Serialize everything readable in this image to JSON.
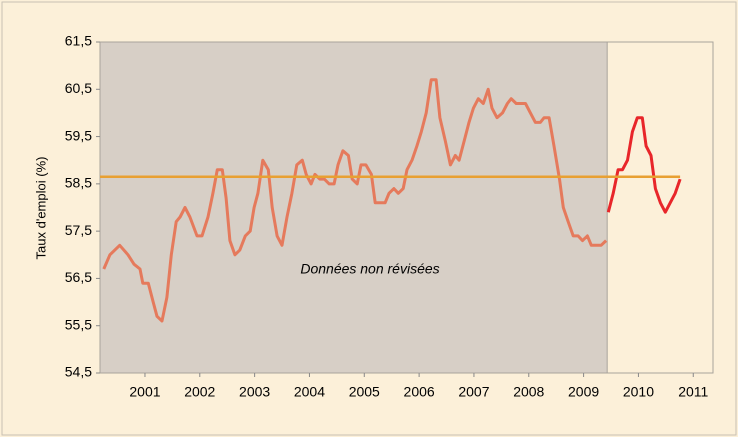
{
  "chart_data": {
    "type": "line",
    "y_label": "Taux d'emploi (%)",
    "annotation": "Données non révisées",
    "ylim": [
      54.5,
      61.5
    ],
    "yticks": [
      {
        "value": 54.5,
        "label": "54,5"
      },
      {
        "value": 55.5,
        "label": "55,5"
      },
      {
        "value": 56.5,
        "label": "56,5"
      },
      {
        "value": 57.5,
        "label": "57,5"
      },
      {
        "value": 58.5,
        "label": "58,5"
      },
      {
        "value": 59.5,
        "label": "59,5"
      },
      {
        "value": 60.5,
        "label": "60,5"
      },
      {
        "value": 61.5,
        "label": "61,5"
      }
    ],
    "xlim": [
      2000.18,
      2011.36
    ],
    "xticks": [
      2001,
      2002,
      2003,
      2004,
      2005,
      2006,
      2007,
      2008,
      2009,
      2010,
      2011
    ],
    "shaded_until": 2009.43,
    "shade_color": "#d7cfc6",
    "reference_line": {
      "value": 58.65,
      "x_end": 2010.76,
      "color": "#e8a032"
    },
    "series": [
      {
        "color": "#e57a5c",
        "x": [
          2000.25,
          2000.36,
          2000.54,
          2000.69,
          2000.8,
          2000.91,
          2000.96,
          2001.06,
          2001.15,
          2001.22,
          2001.31,
          2001.4,
          2001.48,
          2001.57,
          2001.64,
          2001.73,
          2001.82,
          2001.95,
          2002.04,
          2002.15,
          2002.24,
          2002.32,
          2002.41,
          2002.48,
          2002.55,
          2002.64,
          2002.73,
          2002.83,
          2002.92,
          2002.99,
          2003.06,
          2003.15,
          2003.25,
          2003.32,
          2003.41,
          2003.5,
          2003.59,
          2003.68,
          2003.77,
          2003.87,
          2003.94,
          2004.03,
          2004.1,
          2004.19,
          2004.27,
          2004.36,
          2004.45,
          2004.52,
          2004.61,
          2004.71,
          2004.78,
          2004.87,
          2004.94,
          2005.03,
          2005.13,
          2005.2,
          2005.29,
          2005.38,
          2005.45,
          2005.54,
          2005.62,
          2005.71,
          2005.78,
          2005.87,
          2005.96,
          2006.04,
          2006.13,
          2006.22,
          2006.31,
          2006.38,
          2006.48,
          2006.57,
          2006.66,
          2006.73,
          2006.82,
          2006.91,
          2006.99,
          2007.08,
          2007.17,
          2007.26,
          2007.33,
          2007.42,
          2007.52,
          2007.61,
          2007.68,
          2007.77,
          2007.86,
          2007.94,
          2008.03,
          2008.12,
          2008.21,
          2008.28,
          2008.37,
          2008.46,
          2008.56,
          2008.63,
          2008.72,
          2008.81,
          2008.9,
          2008.98,
          2009.07,
          2009.14,
          2009.23,
          2009.32,
          2009.41
        ],
        "values": [
          56.7,
          57.0,
          57.2,
          57.0,
          56.8,
          56.7,
          56.4,
          56.4,
          56.0,
          55.7,
          55.6,
          56.1,
          57.0,
          57.7,
          57.8,
          58.0,
          57.8,
          57.4,
          57.4,
          57.8,
          58.3,
          58.8,
          58.8,
          58.2,
          57.3,
          57.0,
          57.1,
          57.4,
          57.5,
          58.0,
          58.3,
          59.0,
          58.8,
          58.0,
          57.4,
          57.2,
          57.8,
          58.3,
          58.9,
          59.0,
          58.7,
          58.5,
          58.7,
          58.6,
          58.6,
          58.5,
          58.5,
          58.9,
          59.2,
          59.1,
          58.6,
          58.5,
          58.9,
          58.9,
          58.7,
          58.1,
          58.1,
          58.1,
          58.3,
          58.4,
          58.3,
          58.4,
          58.8,
          59.0,
          59.3,
          59.6,
          60.0,
          60.7,
          60.7,
          59.9,
          59.4,
          58.9,
          59.1,
          59.0,
          59.4,
          59.8,
          60.1,
          60.3,
          60.2,
          60.5,
          60.1,
          59.9,
          60.0,
          60.2,
          60.3,
          60.2,
          60.2,
          60.2,
          60.0,
          59.8,
          59.8,
          59.9,
          59.9,
          59.3,
          58.6,
          58.0,
          57.7,
          57.4,
          57.4,
          57.3,
          57.4,
          57.2,
          57.2,
          57.2,
          57.3
        ]
      },
      {
        "color": "#e8262a",
        "x": [
          2009.45,
          2009.54,
          2009.63,
          2009.71,
          2009.8,
          2009.89,
          2009.98,
          2010.07,
          2010.14,
          2010.23,
          2010.31,
          2010.4,
          2010.49,
          2010.58,
          2010.67,
          2010.76
        ],
        "values": [
          57.9,
          58.3,
          58.8,
          58.8,
          59.0,
          59.6,
          59.9,
          59.9,
          59.3,
          59.1,
          58.4,
          58.1,
          57.9,
          58.1,
          58.3,
          58.6
        ]
      }
    ]
  }
}
